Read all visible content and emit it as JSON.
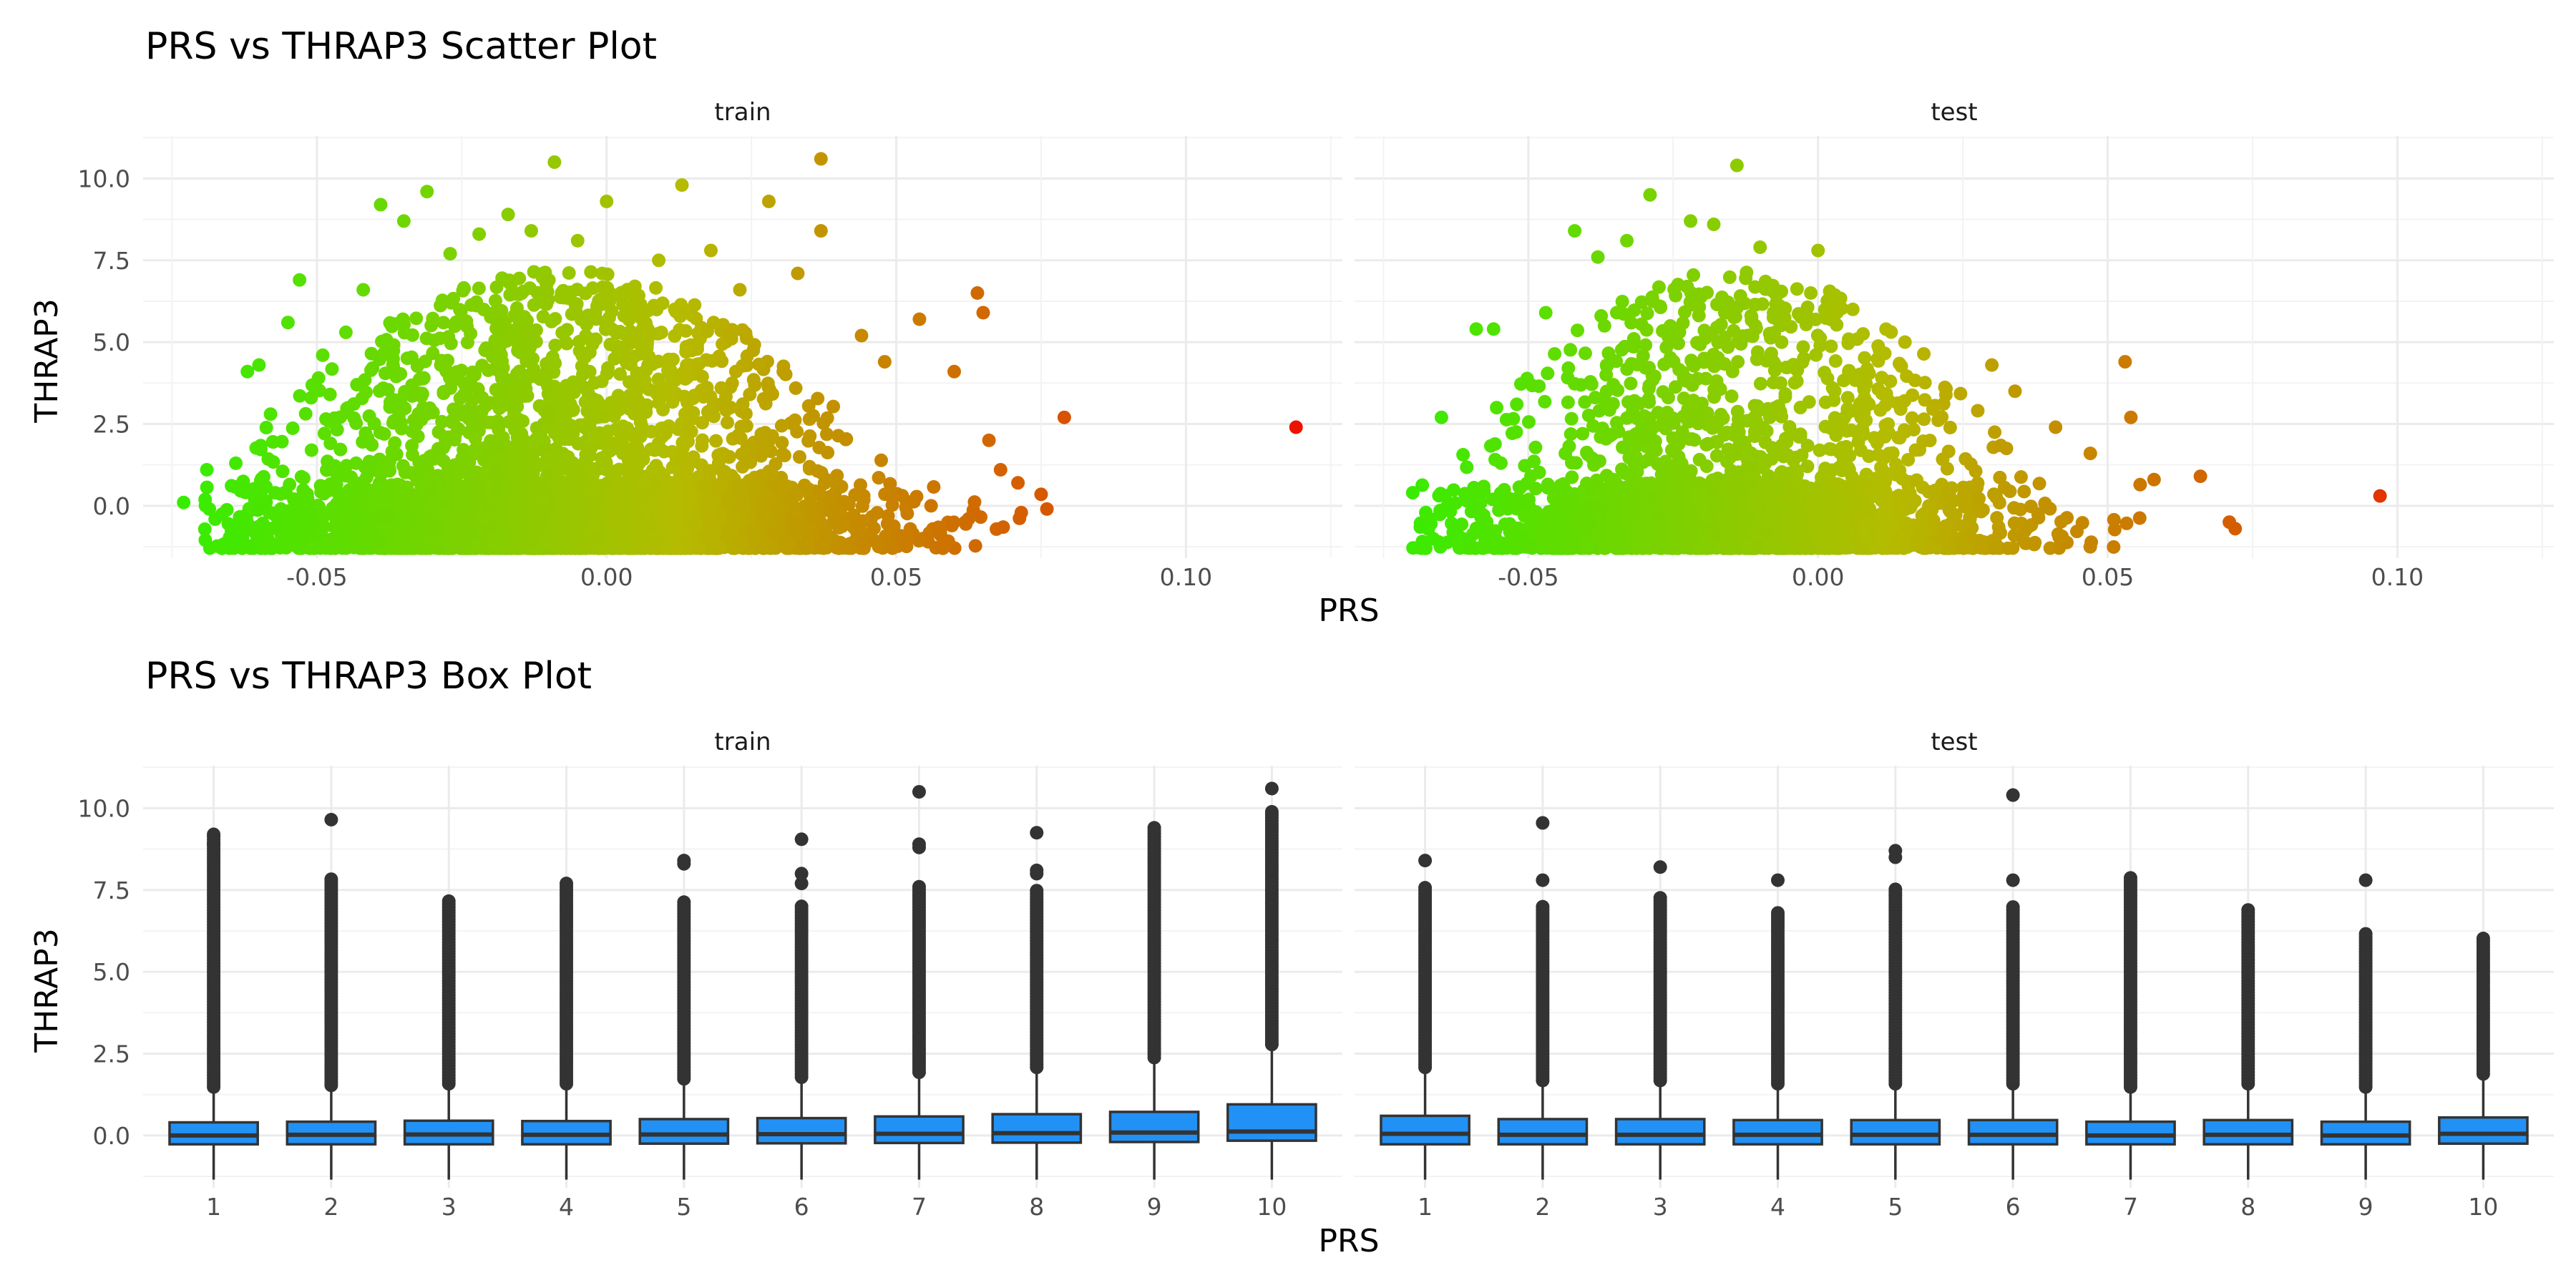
{
  "chart_data": [
    {
      "type": "scatter",
      "title": "PRS vs THRAP3 Scatter Plot",
      "xlabel": "PRS",
      "ylabel": "THRAP3",
      "xlim": [
        -0.08,
        0.127
      ],
      "ylim": [
        -1.6,
        11.3
      ],
      "x_ticks": [
        "-0.05",
        "0.00",
        "0.05",
        "0.10"
      ],
      "x_tick_values": [
        -0.05,
        0.0,
        0.05,
        0.1
      ],
      "y_ticks": [
        "0.0",
        "2.5",
        "5.0",
        "7.5",
        "10.0"
      ],
      "y_tick_values": [
        0.0,
        2.5,
        5.0,
        7.5,
        10.0
      ],
      "grid": true,
      "color_scale": {
        "low": "#33ee00",
        "mid": "#b5bb00",
        "high": "#ee1100",
        "x_low": -0.075,
        "x_high": 0.12
      },
      "panels": [
        {
          "label": "train",
          "points": [
            [
              -0.073,
              0.1
            ],
            [
              -0.069,
              1.1
            ],
            [
              -0.064,
              1.3
            ],
            [
              -0.062,
              4.1
            ],
            [
              -0.06,
              4.3
            ],
            [
              -0.058,
              2.8
            ],
            [
              -0.055,
              5.6
            ],
            [
              -0.053,
              6.9
            ],
            [
              -0.051,
              3.3
            ],
            [
              -0.049,
              4.6
            ],
            [
              -0.045,
              5.3
            ],
            [
              -0.042,
              6.6
            ],
            [
              -0.039,
              9.2
            ],
            [
              -0.035,
              8.7
            ],
            [
              -0.031,
              9.6
            ],
            [
              -0.027,
              7.7
            ],
            [
              -0.022,
              8.3
            ],
            [
              -0.017,
              8.9
            ],
            [
              -0.013,
              8.4
            ],
            [
              -0.009,
              10.5
            ],
            [
              -0.005,
              8.1
            ],
            [
              0.0,
              9.3
            ],
            [
              0.009,
              7.5
            ],
            [
              0.013,
              9.8
            ],
            [
              0.018,
              7.8
            ],
            [
              0.023,
              6.6
            ],
            [
              0.028,
              9.3
            ],
            [
              0.033,
              7.1
            ],
            [
              0.037,
              10.6
            ],
            [
              0.037,
              8.4
            ],
            [
              0.044,
              5.2
            ],
            [
              0.048,
              4.4
            ],
            [
              0.054,
              5.7
            ],
            [
              0.06,
              4.1
            ],
            [
              0.064,
              6.5
            ],
            [
              0.065,
              5.9
            ],
            [
              0.066,
              2.0
            ],
            [
              0.068,
              1.1
            ],
            [
              0.071,
              0.7
            ],
            [
              0.075,
              0.35
            ],
            [
              0.076,
              -0.1
            ],
            [
              0.079,
              2.7
            ],
            [
              0.119,
              2.4
            ]
          ],
          "cloud": {
            "x_mean": -0.008,
            "x_sd": 0.024,
            "y_floor": -1.3,
            "density": "dense"
          }
        },
        {
          "label": "test",
          "points": [
            [
              -0.067,
              -0.4
            ],
            [
              -0.065,
              2.7
            ],
            [
              -0.059,
              5.4
            ],
            [
              -0.056,
              5.4
            ],
            [
              -0.052,
              3.1
            ],
            [
              -0.047,
              5.9
            ],
            [
              -0.042,
              8.4
            ],
            [
              -0.038,
              7.6
            ],
            [
              -0.033,
              8.1
            ],
            [
              -0.029,
              9.5
            ],
            [
              -0.022,
              8.7
            ],
            [
              -0.018,
              8.6
            ],
            [
              -0.014,
              10.4
            ],
            [
              -0.01,
              7.9
            ],
            [
              0.0,
              7.8
            ],
            [
              0.006,
              6.0
            ],
            [
              0.015,
              5.0
            ],
            [
              0.03,
              4.3
            ],
            [
              0.034,
              3.5
            ],
            [
              0.041,
              2.4
            ],
            [
              0.047,
              1.6
            ],
            [
              0.053,
              4.4
            ],
            [
              0.054,
              2.7
            ],
            [
              0.058,
              0.8
            ],
            [
              0.066,
              0.9
            ],
            [
              0.071,
              -0.5
            ],
            [
              0.072,
              -0.7
            ],
            [
              0.097,
              0.3
            ]
          ],
          "cloud": {
            "x_mean": -0.014,
            "x_sd": 0.021,
            "y_floor": -1.3,
            "density": "medium"
          }
        }
      ]
    },
    {
      "type": "box",
      "title": "PRS vs THRAP3 Box Plot",
      "xlabel": "PRS",
      "ylabel": "THRAP3",
      "categories": [
        "1",
        "2",
        "3",
        "4",
        "5",
        "6",
        "7",
        "8",
        "9",
        "10"
      ],
      "ylim": [
        -1.6,
        11.3
      ],
      "y_ticks": [
        "0.0",
        "2.5",
        "5.0",
        "7.5",
        "10.0"
      ],
      "y_tick_values": [
        0.0,
        2.5,
        5.0,
        7.5,
        10.0
      ],
      "grid": true,
      "box_fill": "#2291f5",
      "box_stroke": "#333333",
      "panels": [
        {
          "label": "train",
          "boxes": [
            {
              "q1": -0.27,
              "median": 0.0,
              "q3": 0.4,
              "whisker_low": -1.35,
              "whisker_high": 1.4,
              "outlier_max": 9.2,
              "outliers": [
                8.9,
                9.2
              ]
            },
            {
              "q1": -0.27,
              "median": 0.02,
              "q3": 0.42,
              "whisker_low": -1.35,
              "whisker_high": 1.45,
              "outlier_max": 7.9,
              "outliers": [
                9.65
              ]
            },
            {
              "q1": -0.27,
              "median": 0.03,
              "q3": 0.45,
              "whisker_low": -1.35,
              "whisker_high": 1.5,
              "outlier_max": 7.2,
              "outliers": []
            },
            {
              "q1": -0.27,
              "median": 0.02,
              "q3": 0.44,
              "whisker_low": -1.35,
              "whisker_high": 1.5,
              "outlier_max": 7.7,
              "outliers": []
            },
            {
              "q1": -0.25,
              "median": 0.03,
              "q3": 0.5,
              "whisker_low": -1.35,
              "whisker_high": 1.65,
              "outlier_max": 7.2,
              "outliers": [
                8.3,
                8.4
              ]
            },
            {
              "q1": -0.24,
              "median": 0.04,
              "q3": 0.53,
              "whisker_low": -1.35,
              "whisker_high": 1.7,
              "outlier_max": 7.0,
              "outliers": [
                7.7,
                8.0,
                9.05
              ]
            },
            {
              "q1": -0.23,
              "median": 0.05,
              "q3": 0.58,
              "whisker_low": -1.35,
              "whisker_high": 1.85,
              "outlier_max": 7.6,
              "outliers": [
                8.8,
                8.9,
                10.5
              ]
            },
            {
              "q1": -0.22,
              "median": 0.07,
              "q3": 0.65,
              "whisker_low": -1.35,
              "whisker_high": 2.0,
              "outlier_max": 7.5,
              "outliers": [
                8.0,
                8.1,
                9.25
              ]
            },
            {
              "q1": -0.2,
              "median": 0.09,
              "q3": 0.72,
              "whisker_low": -1.35,
              "whisker_high": 2.3,
              "outlier_max": 9.4,
              "outliers": []
            },
            {
              "q1": -0.16,
              "median": 0.12,
              "q3": 0.95,
              "whisker_low": -1.35,
              "whisker_high": 2.7,
              "outlier_max": 9.9,
              "outliers": [
                10.6
              ]
            }
          ]
        },
        {
          "label": "test",
          "boxes": [
            {
              "q1": -0.27,
              "median": 0.05,
              "q3": 0.6,
              "whisker_low": -1.35,
              "whisker_high": 2.0,
              "outlier_max": 7.6,
              "outliers": [
                8.4
              ]
            },
            {
              "q1": -0.27,
              "median": 0.02,
              "q3": 0.5,
              "whisker_low": -1.35,
              "whisker_high": 1.6,
              "outlier_max": 7.0,
              "outliers": [
                7.8,
                9.55
              ]
            },
            {
              "q1": -0.27,
              "median": 0.02,
              "q3": 0.5,
              "whisker_low": -1.35,
              "whisker_high": 1.6,
              "outlier_max": 7.3,
              "outliers": [
                8.2
              ]
            },
            {
              "q1": -0.27,
              "median": 0.02,
              "q3": 0.47,
              "whisker_low": -1.35,
              "whisker_high": 1.5,
              "outlier_max": 6.8,
              "outliers": [
                7.8
              ]
            },
            {
              "q1": -0.27,
              "median": 0.02,
              "q3": 0.47,
              "whisker_low": -1.35,
              "whisker_high": 1.5,
              "outlier_max": 7.6,
              "outliers": [
                8.5,
                8.7
              ]
            },
            {
              "q1": -0.27,
              "median": 0.02,
              "q3": 0.47,
              "whisker_low": -1.35,
              "whisker_high": 1.5,
              "outlier_max": 7.0,
              "outliers": [
                7.8,
                10.4
              ]
            },
            {
              "q1": -0.27,
              "median": 0.0,
              "q3": 0.42,
              "whisker_low": -1.35,
              "whisker_high": 1.4,
              "outlier_max": 7.95,
              "outliers": []
            },
            {
              "q1": -0.27,
              "median": 0.02,
              "q3": 0.47,
              "whisker_low": -1.35,
              "whisker_high": 1.5,
              "outlier_max": 6.95,
              "outliers": []
            },
            {
              "q1": -0.27,
              "median": 0.0,
              "q3": 0.42,
              "whisker_low": -1.35,
              "whisker_high": 1.4,
              "outlier_max": 6.2,
              "outliers": [
                7.8
              ]
            },
            {
              "q1": -0.25,
              "median": 0.05,
              "q3": 0.55,
              "whisker_low": -1.35,
              "whisker_high": 1.8,
              "outlier_max": 6.1,
              "outliers": []
            }
          ]
        }
      ]
    }
  ]
}
